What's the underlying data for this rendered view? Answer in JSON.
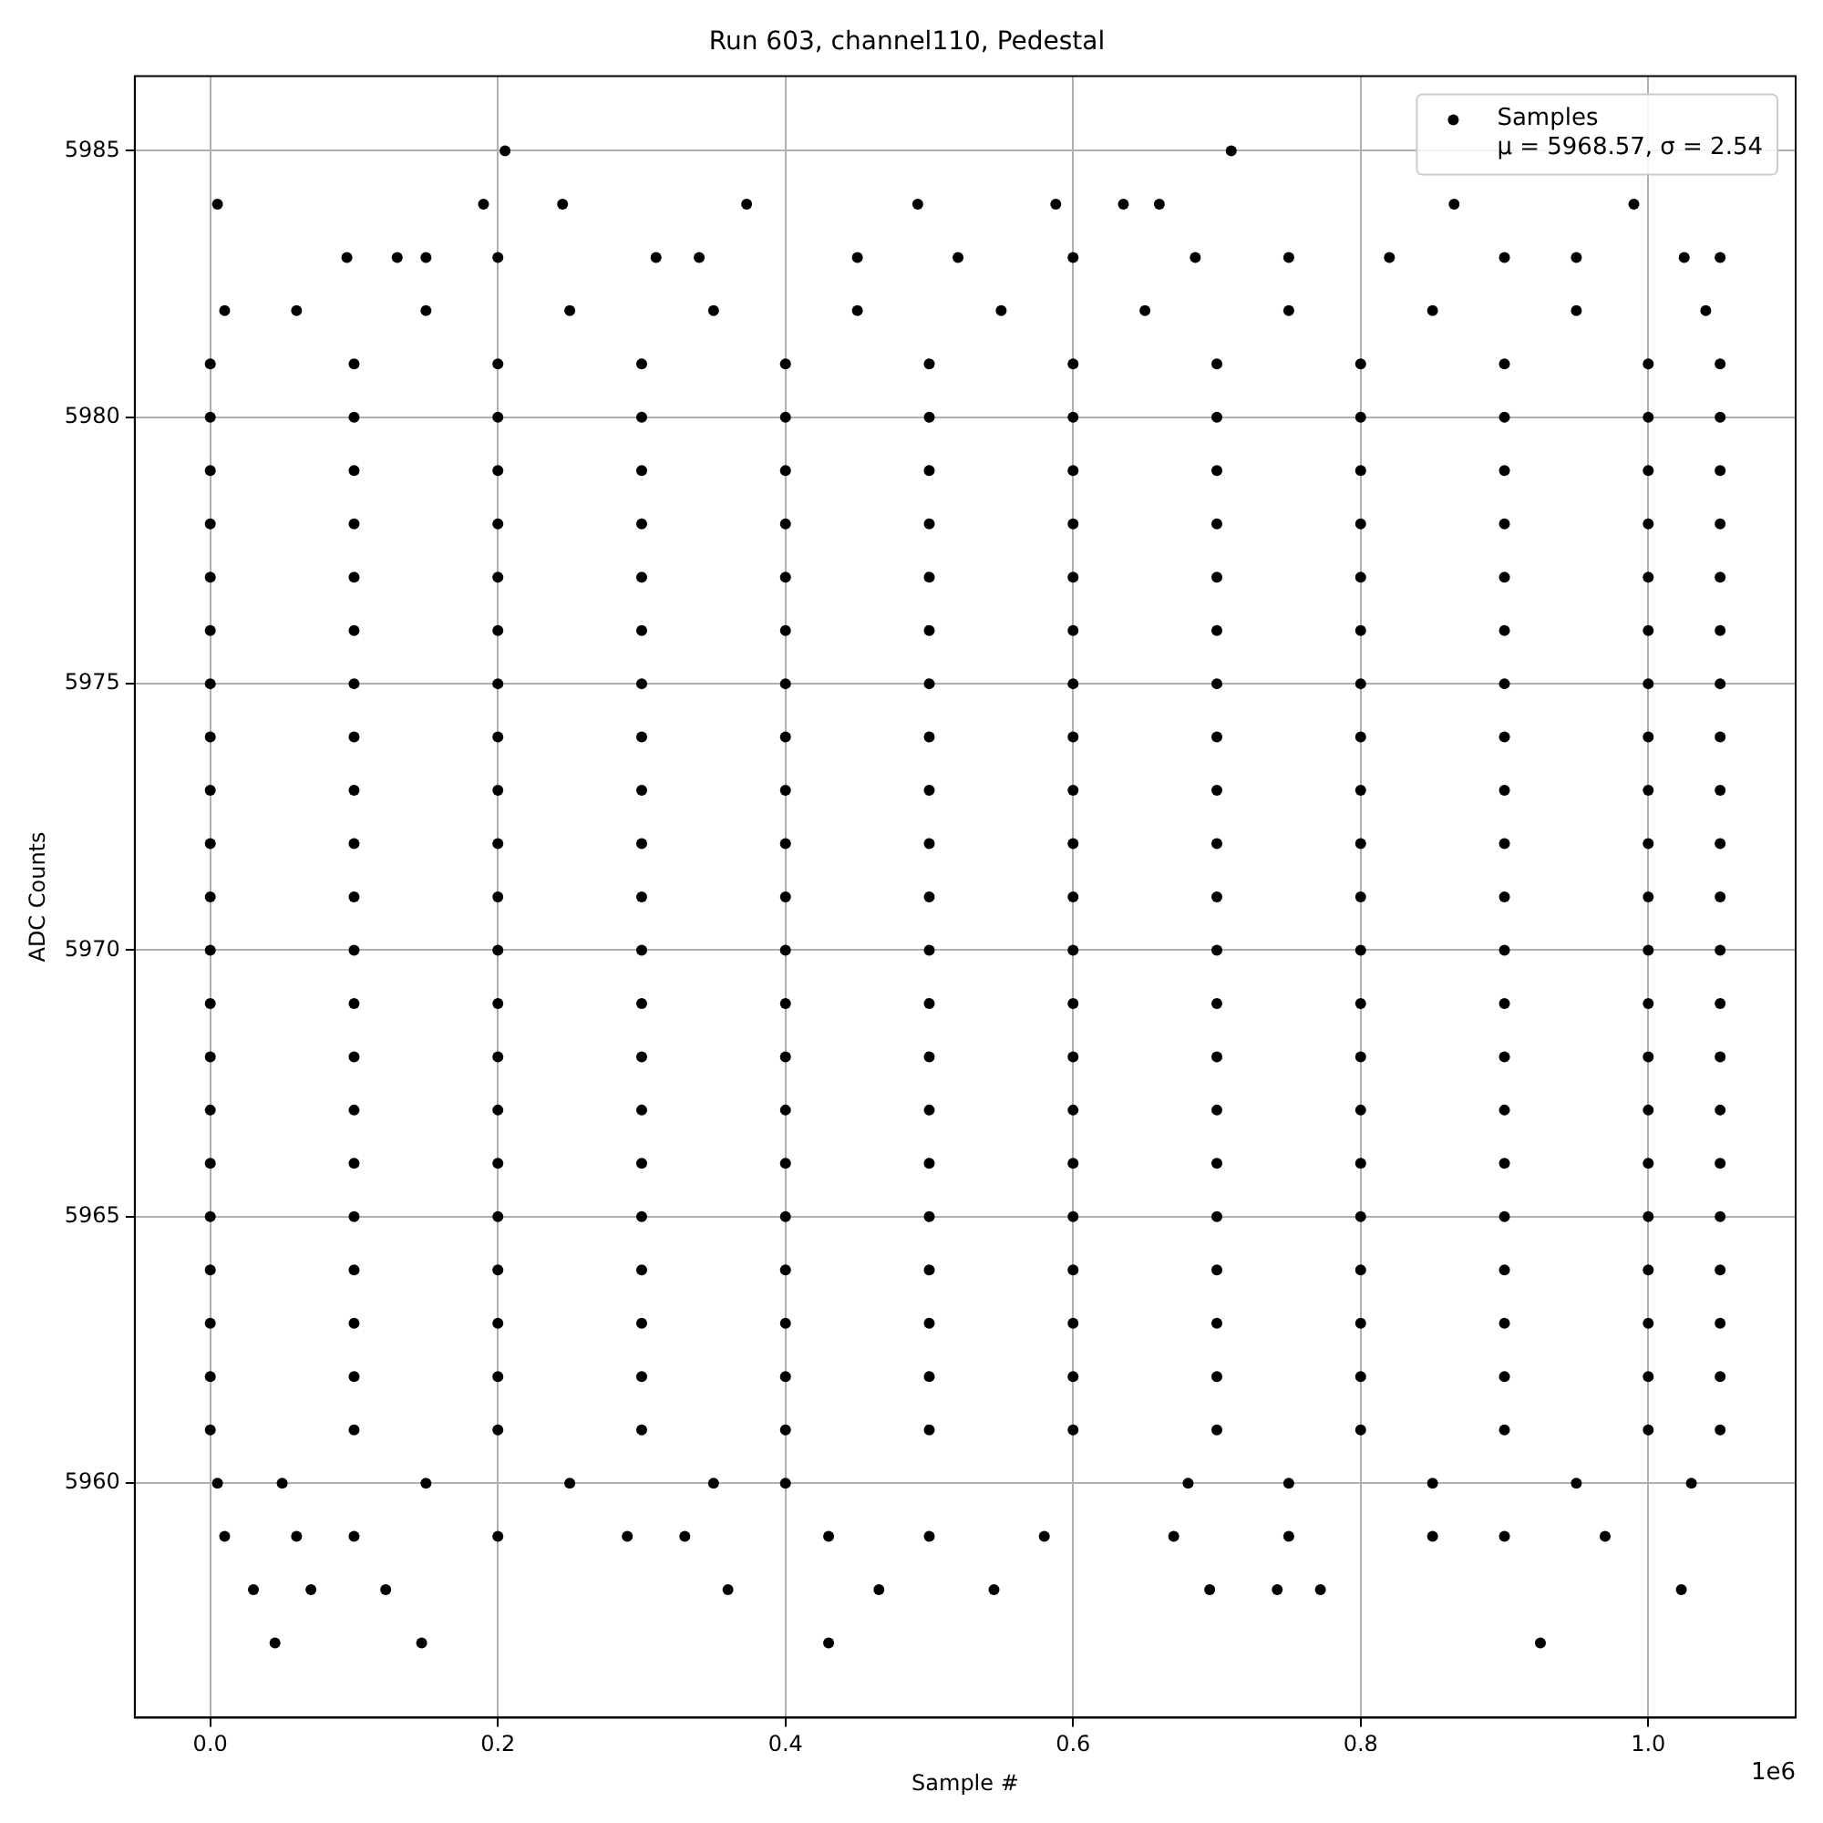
{
  "chart_data": {
    "type": "scatter",
    "title": "Run 603, channel110, Pedestal",
    "xlabel": "Sample #",
    "ylabel": "ADC Counts",
    "annotations": [
      "1e6"
    ],
    "xlim": [
      -0.0525,
      1.1025
    ],
    "xticks": [
      {
        "value": 0,
        "label": "0.0"
      },
      0.2,
      0.4,
      0.6,
      0.8,
      {
        "value": 1,
        "label": "1.0"
      }
    ],
    "ylim": [
      5955.6,
      5986.4
    ],
    "yticks": [
      5960,
      5965,
      5970,
      5975,
      5980,
      5985
    ],
    "grid": true,
    "legend": "top right",
    "marker": "circle",
    "series": [
      {
        "name": "Samples\nμ = 5968.57, σ = 2.54",
        "color": "#000000",
        "x": [
          0,
          0.1,
          0.2,
          0.3,
          0.4,
          0.5,
          0.6,
          0.7,
          0.8,
          0.9,
          1.0,
          1.05,
          0,
          0.1,
          0.2,
          0.3,
          0.4,
          0.5,
          0.6,
          0.7,
          0.8,
          0.9,
          1.0,
          1.05,
          0,
          0.1,
          0.2,
          0.3,
          0.4,
          0.5,
          0.6,
          0.7,
          0.8,
          0.9,
          1.0,
          1.05,
          0,
          0.1,
          0.2,
          0.3,
          0.4,
          0.5,
          0.6,
          0.7,
          0.8,
          0.9,
          1.0,
          1.05,
          0,
          0.1,
          0.2,
          0.3,
          0.4,
          0.5,
          0.6,
          0.7,
          0.8,
          0.9,
          1.0,
          1.05,
          0,
          0.1,
          0.2,
          0.3,
          0.4,
          0.5,
          0.6,
          0.7,
          0.8,
          0.9,
          1.0,
          1.05,
          0,
          0.1,
          0.2,
          0.3,
          0.4,
          0.5,
          0.6,
          0.7,
          0.8,
          0.9,
          1.0,
          1.05,
          0,
          0.1,
          0.2,
          0.3,
          0.4,
          0.5,
          0.6,
          0.7,
          0.8,
          0.9,
          1.0,
          1.05,
          0,
          0.1,
          0.2,
          0.3,
          0.4,
          0.5,
          0.6,
          0.7,
          0.8,
          0.9,
          1.0,
          1.05,
          0,
          0.1,
          0.2,
          0.3,
          0.4,
          0.5,
          0.6,
          0.7,
          0.8,
          0.9,
          1.0,
          1.05,
          0,
          0.1,
          0.2,
          0.3,
          0.4,
          0.5,
          0.6,
          0.7,
          0.8,
          0.9,
          1.0,
          1.05,
          0,
          0.1,
          0.2,
          0.3,
          0.4,
          0.5,
          0.6,
          0.7,
          0.8,
          0.9,
          1.0,
          1.05,
          0,
          0.1,
          0.2,
          0.3,
          0.4,
          0.5,
          0.6,
          0.7,
          0.8,
          0.9,
          1.0,
          1.05,
          0,
          0.1,
          0.2,
          0.3,
          0.4,
          0.5,
          0.6,
          0.7,
          0.8,
          0.9,
          1.0,
          1.05,
          0,
          0.1,
          0.2,
          0.3,
          0.4,
          0.5,
          0.6,
          0.7,
          0.8,
          0.9,
          1.0,
          1.05,
          0,
          0.1,
          0.2,
          0.3,
          0.4,
          0.5,
          0.6,
          0.7,
          0.8,
          0.9,
          1.0,
          1.05,
          0,
          0.1,
          0.2,
          0.3,
          0.4,
          0.5,
          0.6,
          0.7,
          0.8,
          0.9,
          1.0,
          1.05,
          0,
          0.1,
          0.2,
          0.3,
          0.4,
          0.5,
          0.6,
          0.7,
          0.8,
          0.9,
          1.0,
          1.05,
          0,
          0.1,
          0.2,
          0.3,
          0.4,
          0.5,
          0.6,
          0.7,
          0.8,
          0.9,
          1.0,
          1.05,
          0,
          0.1,
          0.2,
          0.3,
          0.4,
          0.5,
          0.6,
          0.7,
          0.8,
          0.9,
          1.0,
          1.05,
          0,
          0.1,
          0.2,
          0.3,
          0.4,
          0.5,
          0.6,
          0.7,
          0.8,
          0.9,
          1.0,
          1.05,
          0.01,
          0.06,
          0.15,
          0.25,
          0.35,
          0.45,
          0.55,
          0.65,
          0.75,
          0.85,
          0.95,
          1.04,
          0.005,
          0.05,
          0.15,
          0.25,
          0.35,
          0.4,
          0.68,
          0.75,
          0.85,
          0.95,
          1.03,
          0.095,
          0.13,
          0.15,
          0.2,
          0.31,
          0.34,
          0.45,
          0.52,
          0.6,
          0.685,
          0.75,
          0.82,
          0.9,
          0.95,
          1.025,
          1.05,
          0.01,
          0.06,
          0.1,
          0.2,
          0.29,
          0.33,
          0.43,
          0.5,
          0.58,
          0.67,
          0.75,
          0.85,
          0.9,
          0.97,
          0.005,
          0.19,
          0.245,
          0.373,
          0.492,
          0.588,
          0.635,
          0.66,
          0.865,
          0.99,
          0.03,
          0.07,
          0.122,
          0.36,
          0.465,
          0.545,
          0.695,
          0.742,
          0.772,
          1.023,
          0.205,
          0.71,
          0.045,
          0.147,
          0.43,
          0.925
        ],
        "values": [
          5961,
          5961,
          5961,
          5961,
          5961,
          5961,
          5961,
          5961,
          5961,
          5961,
          5961,
          5961,
          5962,
          5962,
          5962,
          5962,
          5962,
          5962,
          5962,
          5962,
          5962,
          5962,
          5962,
          5962,
          5963,
          5963,
          5963,
          5963,
          5963,
          5963,
          5963,
          5963,
          5963,
          5963,
          5963,
          5963,
          5964,
          5964,
          5964,
          5964,
          5964,
          5964,
          5964,
          5964,
          5964,
          5964,
          5964,
          5964,
          5965,
          5965,
          5965,
          5965,
          5965,
          5965,
          5965,
          5965,
          5965,
          5965,
          5965,
          5965,
          5966,
          5966,
          5966,
          5966,
          5966,
          5966,
          5966,
          5966,
          5966,
          5966,
          5966,
          5966,
          5967,
          5967,
          5967,
          5967,
          5967,
          5967,
          5967,
          5967,
          5967,
          5967,
          5967,
          5967,
          5968,
          5968,
          5968,
          5968,
          5968,
          5968,
          5968,
          5968,
          5968,
          5968,
          5968,
          5968,
          5969,
          5969,
          5969,
          5969,
          5969,
          5969,
          5969,
          5969,
          5969,
          5969,
          5969,
          5969,
          5970,
          5970,
          5970,
          5970,
          5970,
          5970,
          5970,
          5970,
          5970,
          5970,
          5970,
          5970,
          5971,
          5971,
          5971,
          5971,
          5971,
          5971,
          5971,
          5971,
          5971,
          5971,
          5971,
          5971,
          5972,
          5972,
          5972,
          5972,
          5972,
          5972,
          5972,
          5972,
          5972,
          5972,
          5972,
          5972,
          5973,
          5973,
          5973,
          5973,
          5973,
          5973,
          5973,
          5973,
          5973,
          5973,
          5973,
          5973,
          5974,
          5974,
          5974,
          5974,
          5974,
          5974,
          5974,
          5974,
          5974,
          5974,
          5974,
          5974,
          5975,
          5975,
          5975,
          5975,
          5975,
          5975,
          5975,
          5975,
          5975,
          5975,
          5975,
          5975,
          5976,
          5976,
          5976,
          5976,
          5976,
          5976,
          5976,
          5976,
          5976,
          5976,
          5976,
          5976,
          5977,
          5977,
          5977,
          5977,
          5977,
          5977,
          5977,
          5977,
          5977,
          5977,
          5977,
          5977,
          5978,
          5978,
          5978,
          5978,
          5978,
          5978,
          5978,
          5978,
          5978,
          5978,
          5978,
          5978,
          5979,
          5979,
          5979,
          5979,
          5979,
          5979,
          5979,
          5979,
          5979,
          5979,
          5979,
          5979,
          5980,
          5980,
          5980,
          5980,
          5980,
          5980,
          5980,
          5980,
          5980,
          5980,
          5980,
          5980,
          5981,
          5981,
          5981,
          5981,
          5981,
          5981,
          5981,
          5981,
          5981,
          5981,
          5981,
          5981,
          5982,
          5982,
          5982,
          5982,
          5982,
          5982,
          5982,
          5982,
          5982,
          5982,
          5982,
          5982,
          5960,
          5960,
          5960,
          5960,
          5960,
          5960,
          5960,
          5960,
          5960,
          5960,
          5960,
          5983,
          5983,
          5983,
          5983,
          5983,
          5983,
          5983,
          5983,
          5983,
          5983,
          5983,
          5983,
          5983,
          5983,
          5983,
          5983,
          5959,
          5959,
          5959,
          5959,
          5959,
          5959,
          5959,
          5959,
          5959,
          5959,
          5959,
          5959,
          5959,
          5959,
          5984,
          5984,
          5984,
          5984,
          5984,
          5984,
          5984,
          5984,
          5984,
          5984,
          5958,
          5958,
          5958,
          5958,
          5958,
          5958,
          5958,
          5958,
          5958,
          5958,
          5985,
          5985,
          5957,
          5957,
          5957,
          5957
        ]
      }
    ]
  }
}
